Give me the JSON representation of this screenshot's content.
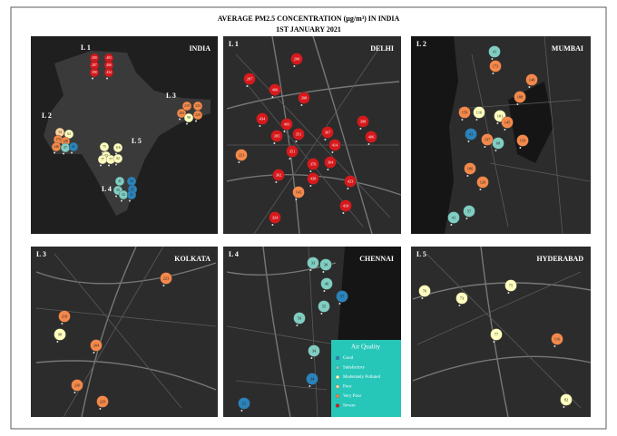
{
  "title": "AVERAGE  PM2.5 CONCENTRATION (µg/m³) IN INDIA",
  "subtitle": "1ST JANUARY 2021",
  "legend": {
    "title": "Air Quality",
    "items": [
      {
        "name": "Good",
        "color": "#2b83ba"
      },
      {
        "name": "Satisfactory",
        "color": "#80cdc1"
      },
      {
        "name": "Moderately Polluted",
        "color": "#ffffbf"
      },
      {
        "name": "Poor",
        "color": "#fdd49e"
      },
      {
        "name": "Very Poor",
        "color": "#f4894b"
      },
      {
        "name": "Severe",
        "color": "#d7191c"
      }
    ]
  },
  "panels": [
    {
      "label": "",
      "city": "INDIA",
      "regions": [
        "L 1",
        "L 2",
        "L 3",
        "L 4",
        "L 5"
      ],
      "markers": [
        {
          "value": "290",
          "color": "#d7191c"
        },
        {
          "value": "403",
          "color": "#d7191c"
        },
        {
          "value": "287",
          "color": "#d7191c"
        },
        {
          "value": "406",
          "color": "#d7191c"
        },
        {
          "value": "398",
          "color": "#d7191c"
        },
        {
          "value": "434",
          "color": "#d7191c"
        },
        {
          "value": "219",
          "color": "#f4894b"
        },
        {
          "value": "223",
          "color": "#f4894b"
        },
        {
          "value": "204",
          "color": "#f4894b"
        },
        {
          "value": "98",
          "color": "#ffffbf"
        },
        {
          "value": "229",
          "color": "#f4894b"
        },
        {
          "value": "54",
          "color": "#fdd49e"
        },
        {
          "value": "63",
          "color": "#ffffbf"
        },
        {
          "value": "173",
          "color": "#f4894b"
        },
        {
          "value": "148",
          "color": "#f4894b"
        },
        {
          "value": "146",
          "color": "#f4894b"
        },
        {
          "value": "57",
          "color": "#80cdc1"
        },
        {
          "value": "41",
          "color": "#2b83ba"
        },
        {
          "value": "75",
          "color": "#ffffbf"
        },
        {
          "value": "116",
          "color": "#ffffbf"
        },
        {
          "value": "73",
          "color": "#ffffbf"
        },
        {
          "value": "77",
          "color": "#ffffbf"
        },
        {
          "value": "77",
          "color": "#ffffbf"
        },
        {
          "value": "82",
          "color": "#ffffbf"
        },
        {
          "value": "41",
          "color": "#80cdc1"
        },
        {
          "value": "34",
          "color": "#2b83ba"
        },
        {
          "value": "50",
          "color": "#80cdc1"
        },
        {
          "value": "57",
          "color": "#2b83ba"
        },
        {
          "value": "33",
          "color": "#80cdc1"
        },
        {
          "value": "21",
          "color": "#2b83ba"
        }
      ]
    },
    {
      "label": "L 1",
      "city": "DELHI",
      "markers": [
        {
          "value": "290",
          "color": "#d7191c"
        },
        {
          "value": "287",
          "color": "#d7191c"
        },
        {
          "value": "406",
          "color": "#d7191c"
        },
        {
          "value": "398",
          "color": "#d7191c"
        },
        {
          "value": "434",
          "color": "#d7191c"
        },
        {
          "value": "403",
          "color": "#d7191c"
        },
        {
          "value": "395",
          "color": "#d7191c"
        },
        {
          "value": "351",
          "color": "#d7191c"
        },
        {
          "value": "367",
          "color": "#d7191c"
        },
        {
          "value": "414",
          "color": "#d7191c"
        },
        {
          "value": "398",
          "color": "#d7191c"
        },
        {
          "value": "406",
          "color": "#d7191c"
        },
        {
          "value": "376",
          "color": "#d7191c"
        },
        {
          "value": "364",
          "color": "#d7191c"
        },
        {
          "value": "351",
          "color": "#d7191c"
        },
        {
          "value": "362",
          "color": "#d7191c"
        },
        {
          "value": "438",
          "color": "#d7191c"
        },
        {
          "value": "423",
          "color": "#d7191c"
        },
        {
          "value": "221",
          "color": "#f4894b"
        },
        {
          "value": "143",
          "color": "#f4894b"
        },
        {
          "value": "410",
          "color": "#d7191c"
        },
        {
          "value": "324",
          "color": "#d7191c"
        }
      ]
    },
    {
      "label": "L 2",
      "city": "MUMBAI",
      "markers": [
        {
          "value": "41",
          "color": "#80cdc1"
        },
        {
          "value": "173",
          "color": "#f4894b"
        },
        {
          "value": "148",
          "color": "#f4894b"
        },
        {
          "value": "188",
          "color": "#f4894b"
        },
        {
          "value": "116",
          "color": "#ffffbf"
        },
        {
          "value": "159",
          "color": "#f4894b"
        },
        {
          "value": "101",
          "color": "#ffffbf"
        },
        {
          "value": "145",
          "color": "#f4894b"
        },
        {
          "value": "41",
          "color": "#2b83ba"
        },
        {
          "value": "197",
          "color": "#f4894b"
        },
        {
          "value": "68",
          "color": "#80cdc1"
        },
        {
          "value": "159",
          "color": "#f4894b"
        },
        {
          "value": "106",
          "color": "#f4894b"
        },
        {
          "value": "120",
          "color": "#f4894b"
        },
        {
          "value": "57",
          "color": "#80cdc1"
        },
        {
          "value": "41",
          "color": "#80cdc1"
        }
      ]
    },
    {
      "label": "L 3",
      "city": "KOLKATA",
      "markers": [
        {
          "value": "223",
          "color": "#f4894b"
        },
        {
          "value": "219",
          "color": "#f4894b"
        },
        {
          "value": "98",
          "color": "#ffffbf"
        },
        {
          "value": "204",
          "color": "#f4894b"
        },
        {
          "value": "230",
          "color": "#f4894b"
        },
        {
          "value": "229",
          "color": "#f4894b"
        }
      ]
    },
    {
      "label": "L 4",
      "city": "CHENNAI",
      "markers": [
        {
          "value": "33",
          "color": "#80cdc1"
        },
        {
          "value": "38",
          "color": "#80cdc1"
        },
        {
          "value": "40",
          "color": "#80cdc1"
        },
        {
          "value": "57",
          "color": "#2b83ba"
        },
        {
          "value": "55",
          "color": "#80cdc1"
        },
        {
          "value": "50",
          "color": "#80cdc1"
        },
        {
          "value": "34",
          "color": "#80cdc1"
        },
        {
          "value": "34",
          "color": "#2b83ba"
        },
        {
          "value": "21",
          "color": "#2b83ba"
        }
      ]
    },
    {
      "label": "L 5",
      "city": "HYDERABAD",
      "markers": [
        {
          "value": "76",
          "color": "#ffffbf"
        },
        {
          "value": "73",
          "color": "#ffffbf"
        },
        {
          "value": "75",
          "color": "#ffffbf"
        },
        {
          "value": "77",
          "color": "#ffffbf"
        },
        {
          "value": "116",
          "color": "#f4894b"
        },
        {
          "value": "82",
          "color": "#ffffbf"
        }
      ]
    }
  ]
}
